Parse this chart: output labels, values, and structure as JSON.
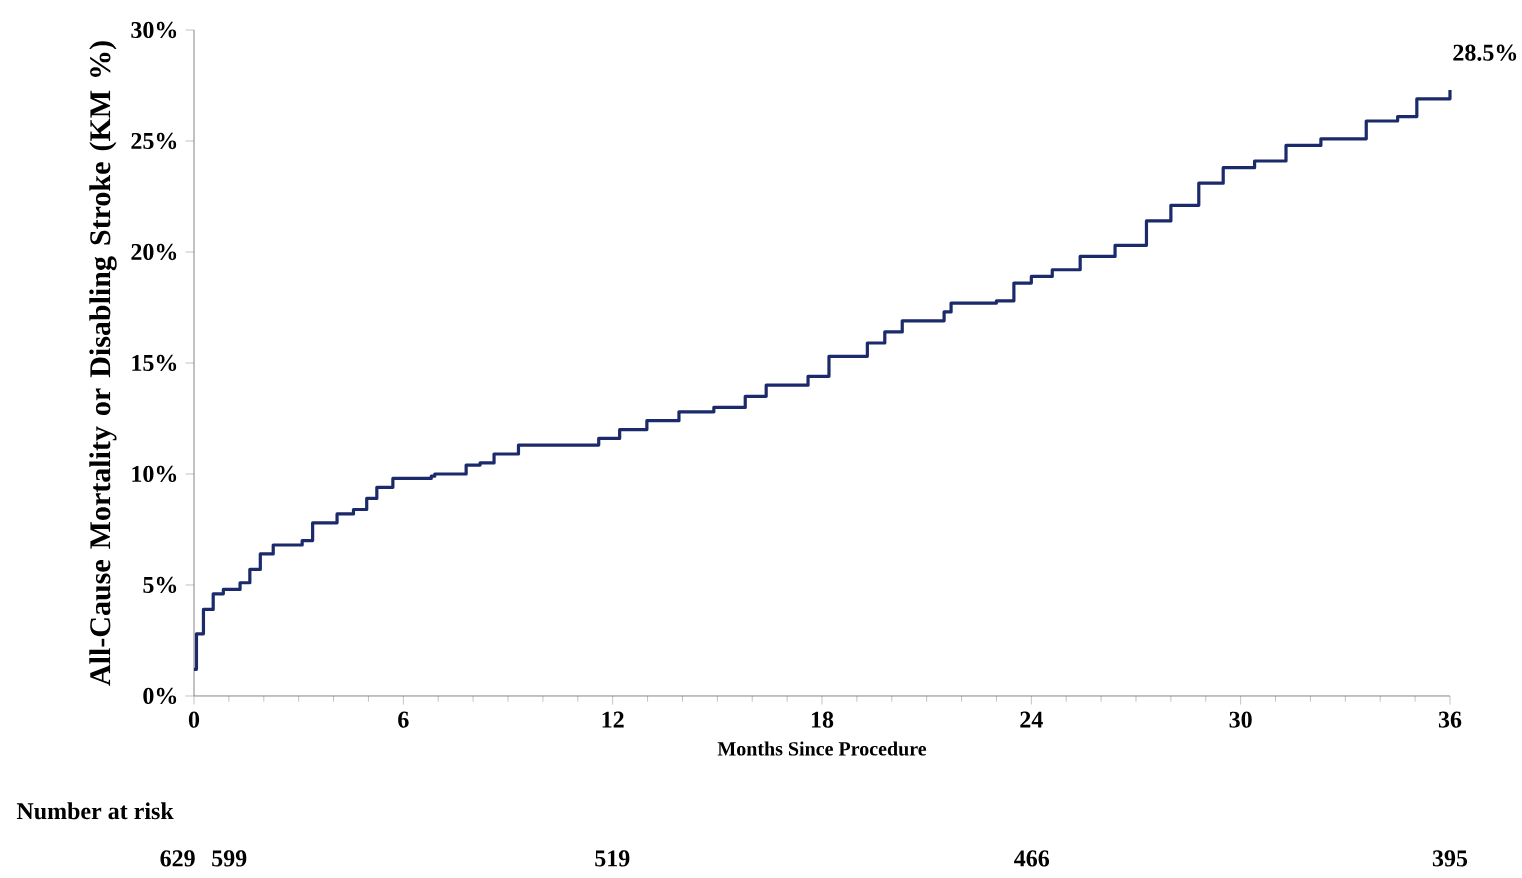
{
  "chart_data": {
    "type": "step",
    "xlabel": "Months Since Procedure",
    "ylabel": "All-Cause Mortality or Disabling Stroke (KM %)",
    "x": [
      0,
      0.07,
      0.27,
      0.46,
      0.55,
      0.84,
      1.32,
      1.6,
      1.9,
      2.27,
      3.1,
      3.4,
      4.0,
      4.1,
      4.57,
      4.95,
      5.24,
      5.7,
      6.8,
      6.9,
      7.8,
      8.2,
      8.6,
      9.3,
      11.35,
      11.6,
      12.2,
      12.98,
      13.9,
      14.9,
      15.8,
      16.4,
      17.6,
      18.2,
      19.3,
      19.8,
      20.3,
      21.5,
      21.7,
      23.0,
      23.5,
      24.0,
      24.6,
      25.4,
      26.4,
      27.3,
      28.0,
      28.8,
      29.5,
      30.4,
      31.3,
      32.3,
      33.6,
      34.5,
      35.05,
      35.6,
      36.0
    ],
    "series": [
      {
        "color": "#1b2a6b",
        "values": [
          1.2,
          2.8,
          3.9,
          3.9,
          4.6,
          4.8,
          5.1,
          5.7,
          6.4,
          6.8,
          7.0,
          7.8,
          7.8,
          8.2,
          8.4,
          8.9,
          9.4,
          9.8,
          9.9,
          10.0,
          10.4,
          10.5,
          10.9,
          11.3,
          11.3,
          11.6,
          12.0,
          12.4,
          12.8,
          13.0,
          13.5,
          14.0,
          14.4,
          15.3,
          15.9,
          16.4,
          16.9,
          17.3,
          17.7,
          17.8,
          18.6,
          18.9,
          19.2,
          19.8,
          20.3,
          21.4,
          22.1,
          23.1,
          23.8,
          24.1,
          24.8,
          25.1,
          25.9,
          26.1,
          26.9,
          26.9,
          27.3
        ]
      }
    ],
    "xlim": [
      0,
      36
    ],
    "xticks": [
      0,
      6,
      12,
      18,
      24,
      30,
      36
    ],
    "ylim": [
      0,
      30
    ],
    "yticks": [
      {
        "value": 0,
        "label": "0%"
      },
      {
        "value": 5,
        "label": "5%"
      },
      {
        "value": 10,
        "label": "10%"
      },
      {
        "value": 15,
        "label": "15%"
      },
      {
        "value": 20,
        "label": "20%"
      },
      {
        "value": 25,
        "label": "25%"
      },
      {
        "value": 30,
        "label": "30%"
      }
    ],
    "grid": false,
    "annotations": [
      "28.5%",
      "Number at risk",
      "629",
      "599",
      "519",
      "466",
      "395"
    ]
  }
}
